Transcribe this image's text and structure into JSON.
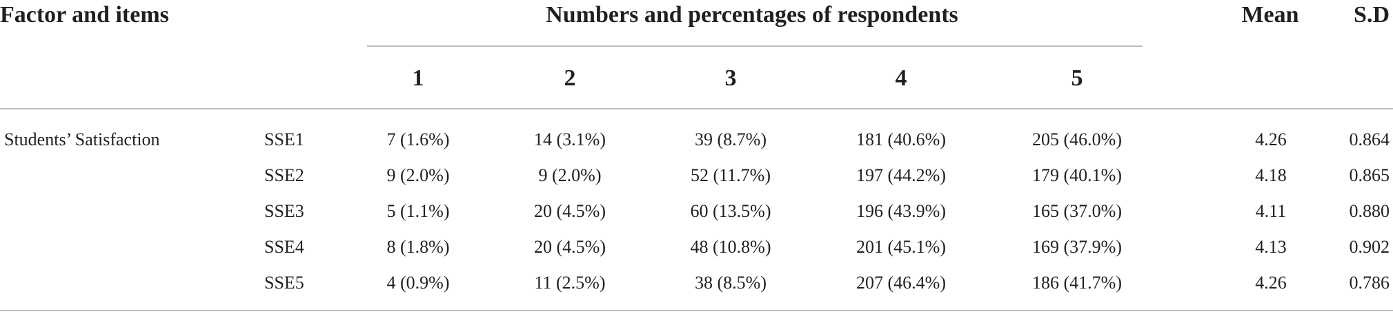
{
  "table": {
    "headers": {
      "factor_items": "Factor and items",
      "group": "Numbers and percentages of respondents",
      "levels": [
        "1",
        "2",
        "3",
        "4",
        "5"
      ],
      "mean": "Mean",
      "sd": "S.D"
    },
    "factor": "Students’ Satisfaction",
    "rows": [
      {
        "item": "SSE1",
        "counts": [
          "7 (1.6%)",
          "14 (3.1%)",
          "39 (8.7%)",
          "181 (40.6%)",
          "205 (46.0%)"
        ],
        "mean": "4.26",
        "sd": "0.864"
      },
      {
        "item": "SSE2",
        "counts": [
          "9 (2.0%)",
          "9 (2.0%)",
          "52 (11.7%)",
          "197 (44.2%)",
          "179 (40.1%)"
        ],
        "mean": "4.18",
        "sd": "0.865"
      },
      {
        "item": "SSE3",
        "counts": [
          "5 (1.1%)",
          "20 (4.5%)",
          "60 (13.5%)",
          "196 (43.9%)",
          "165 (37.0%)"
        ],
        "mean": "4.11",
        "sd": "0.880"
      },
      {
        "item": "SSE4",
        "counts": [
          "8 (1.8%)",
          "20 (4.5%)",
          "48 (10.8%)",
          "201 (45.1%)",
          "169 (37.9%)"
        ],
        "mean": "4.13",
        "sd": "0.902"
      },
      {
        "item": "SSE5",
        "counts": [
          "4 (0.9%)",
          "11 (2.5%)",
          "38 (8.5%)",
          "207 (46.4%)",
          "186 (41.7%)"
        ],
        "mean": "4.26",
        "sd": "0.786"
      }
    ]
  }
}
